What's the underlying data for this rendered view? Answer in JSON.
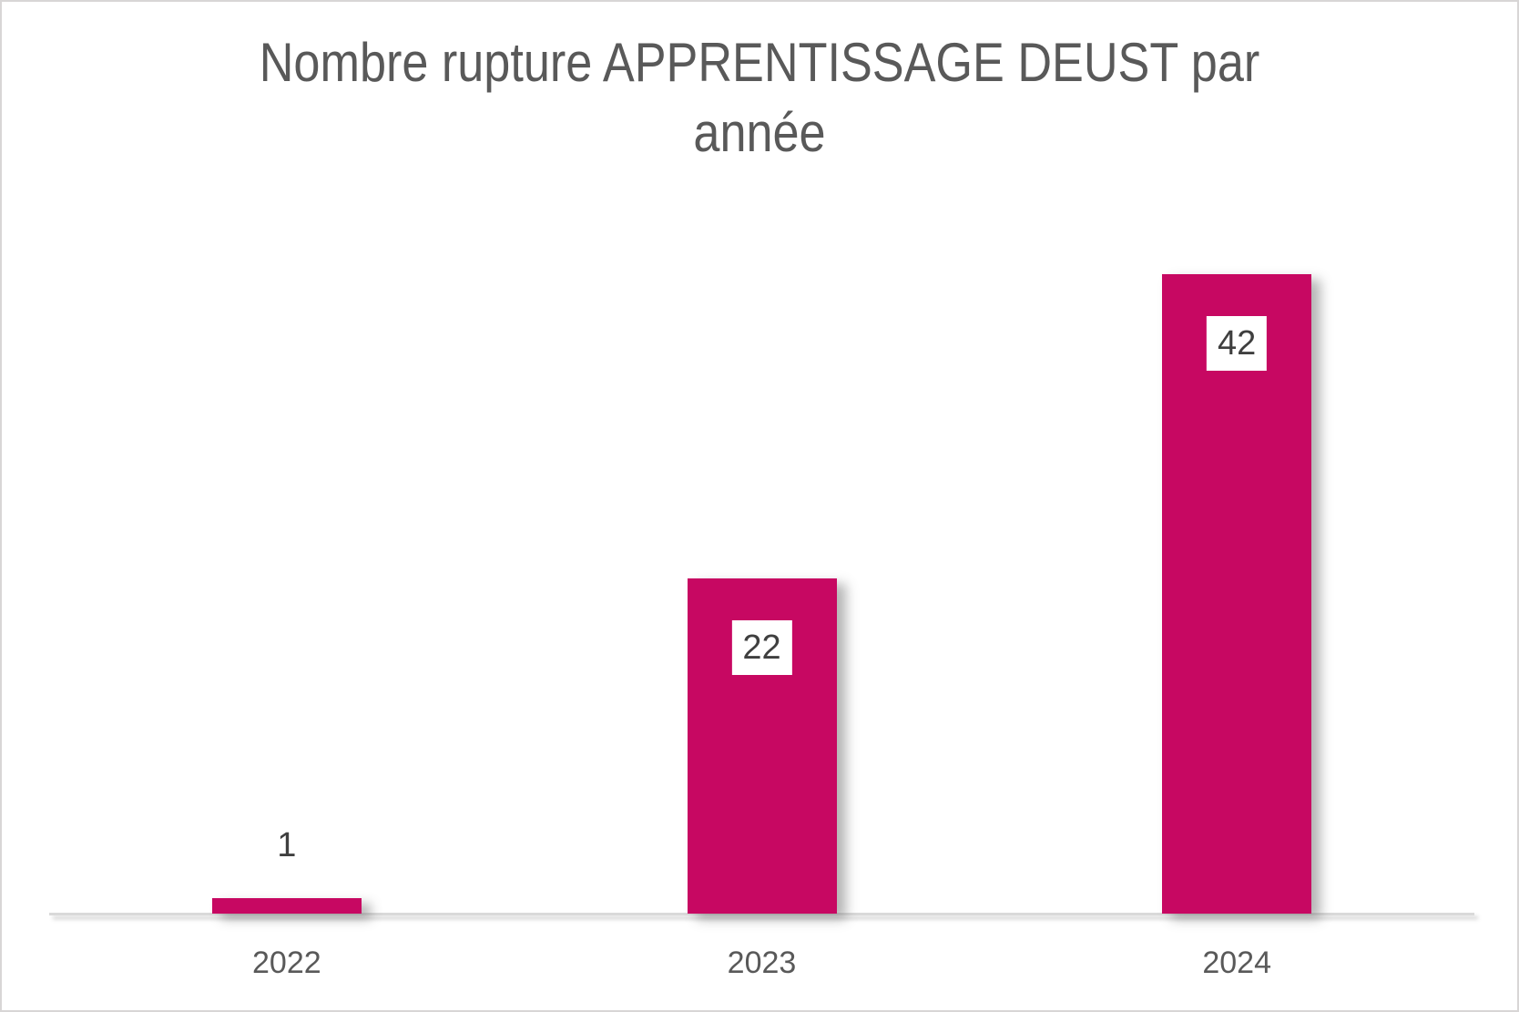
{
  "window": {
    "background": "#FFFFFF",
    "border_color": "#D8D6D6"
  },
  "chart_data": {
    "type": "bar",
    "title": "Nombre rupture APPRENTISSAGE DEUST par\nannée",
    "categories": [
      "2022",
      "2023",
      "2024"
    ],
    "values": [
      1,
      22,
      42
    ],
    "data_labels": [
      "1",
      "22",
      "42"
    ],
    "xlabel": "",
    "ylabel": "",
    "ylim": [
      0,
      45
    ],
    "grid": false,
    "legend": false,
    "bar_color": "#C70862",
    "title_color": "#595959",
    "tick_label_color": "#595959",
    "data_label_color": "#3F3F3F",
    "data_label_background": "#FFFFFF",
    "axis_line_color": "#D9D9D9"
  }
}
